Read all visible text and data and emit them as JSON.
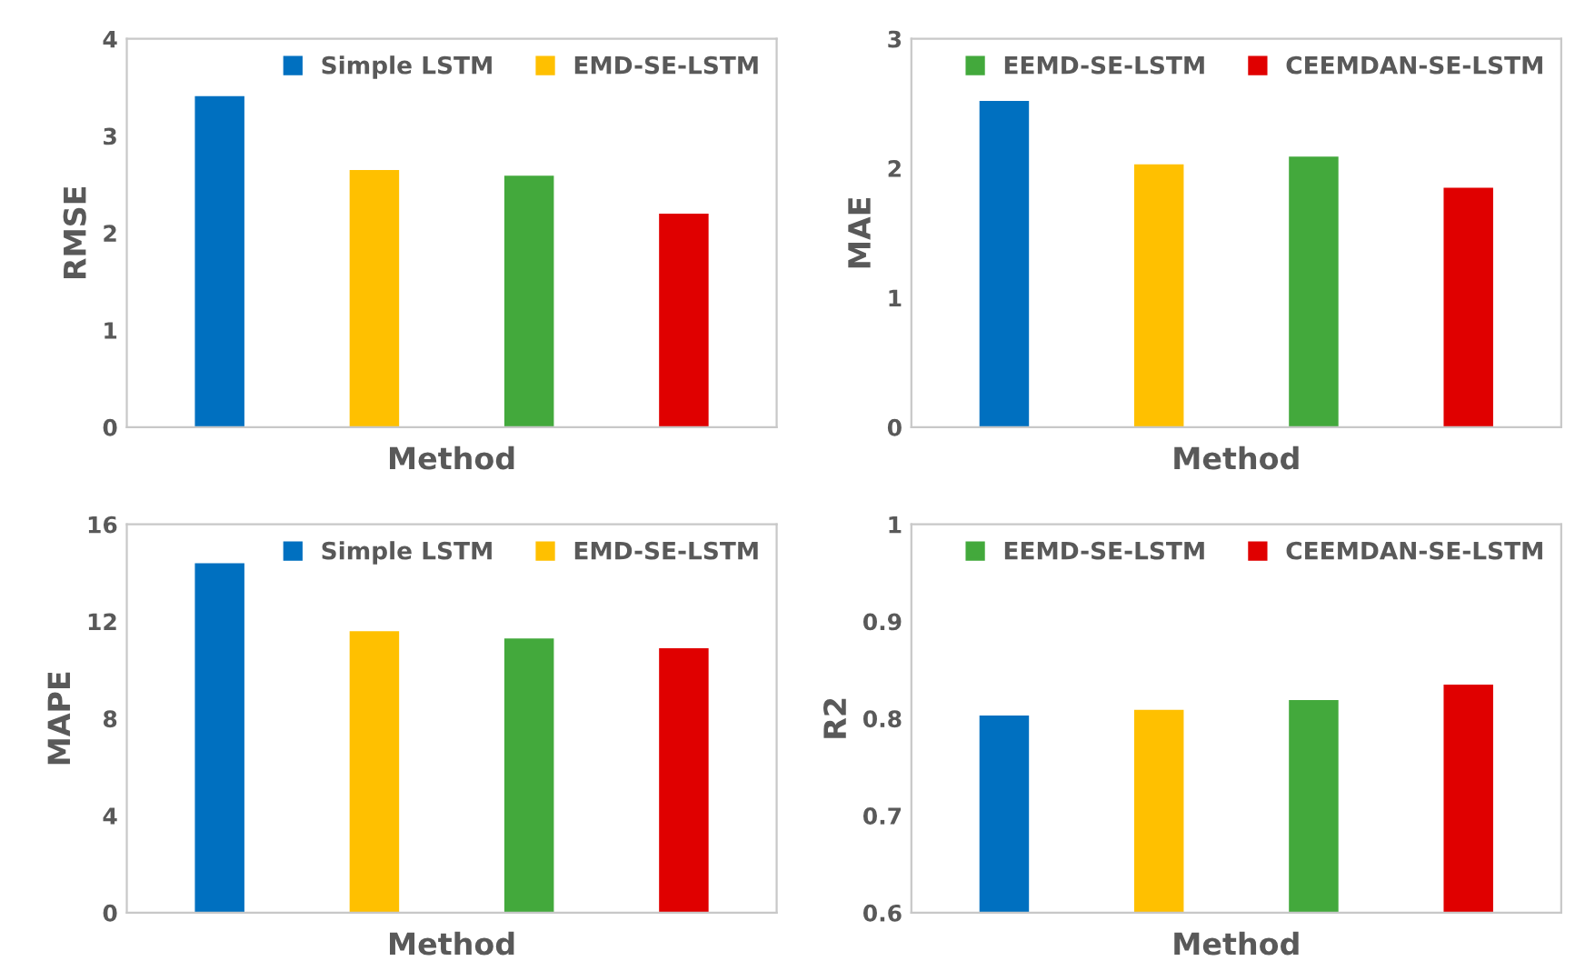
{
  "chart_data": [
    {
      "type": "bar",
      "xlabel": "Method",
      "ylabel": "RMSE",
      "categories": [
        null,
        null,
        null,
        null
      ],
      "ylim": [
        0,
        4
      ],
      "yticks": [
        0,
        1,
        2,
        3,
        4
      ],
      "legend": "top",
      "grid": false,
      "series": [
        {
          "name": "Simple LSTM",
          "color": "#0070c0",
          "values": [
            3.41,
            null,
            null,
            null
          ]
        },
        {
          "name": "EMD-SE-LSTM",
          "color": "#ffc000",
          "values": [
            null,
            2.65,
            null,
            null
          ]
        },
        {
          "color": "#43a93c",
          "values": [
            null,
            null,
            2.59,
            null
          ]
        },
        {
          "color": "#e00000",
          "values": [
            null,
            null,
            null,
            2.2
          ]
        }
      ]
    },
    {
      "type": "bar",
      "xlabel": "Method",
      "ylabel": "MAE",
      "categories": [
        null,
        null,
        null,
        null
      ],
      "ylim": [
        0,
        3
      ],
      "yticks": [
        0,
        1,
        2,
        3
      ],
      "legend": "top",
      "grid": false,
      "series": [
        {
          "color": "#0070c0",
          "values": [
            2.52,
            null,
            null,
            null
          ]
        },
        {
          "color": "#ffc000",
          "values": [
            null,
            2.03,
            null,
            null
          ]
        },
        {
          "name": "EEMD-SE-LSTM",
          "color": "#43a93c",
          "values": [
            null,
            null,
            2.09,
            null
          ]
        },
        {
          "name": "CEEMDAN-SE-LSTM",
          "color": "#e00000",
          "values": [
            null,
            null,
            null,
            1.85
          ]
        }
      ]
    },
    {
      "type": "bar",
      "xlabel": "Method",
      "ylabel": "MAPE",
      "categories": [
        null,
        null,
        null,
        null
      ],
      "ylim": [
        0,
        16
      ],
      "yticks": [
        0,
        4,
        8,
        12,
        16
      ],
      "legend": "top",
      "grid": false,
      "series": [
        {
          "name": "Simple LSTM",
          "color": "#0070c0",
          "values": [
            14.4,
            null,
            null,
            null
          ]
        },
        {
          "name": "EMD-SE-LSTM",
          "color": "#ffc000",
          "values": [
            null,
            11.6,
            null,
            null
          ]
        },
        {
          "color": "#43a93c",
          "values": [
            null,
            null,
            11.3,
            null
          ]
        },
        {
          "color": "#e00000",
          "values": [
            null,
            null,
            null,
            10.9
          ]
        }
      ]
    },
    {
      "type": "bar",
      "xlabel": "Method",
      "ylabel": "R2",
      "categories": [
        null,
        null,
        null,
        null
      ],
      "ylim": [
        0.6,
        1
      ],
      "yticks": [
        0.6,
        0.7,
        0.8,
        0.9,
        1
      ],
      "legend": "top",
      "grid": false,
      "series": [
        {
          "color": "#0070c0",
          "values": [
            0.803,
            null,
            null,
            null
          ]
        },
        {
          "color": "#ffc000",
          "values": [
            null,
            0.809,
            null,
            null
          ]
        },
        {
          "name": "EEMD-SE-LSTM",
          "color": "#43a93c",
          "values": [
            null,
            null,
            0.819,
            null
          ]
        },
        {
          "name": "CEEMDAN-SE-LSTM",
          "color": "#e00000",
          "values": [
            null,
            null,
            null,
            0.835
          ]
        }
      ]
    }
  ]
}
